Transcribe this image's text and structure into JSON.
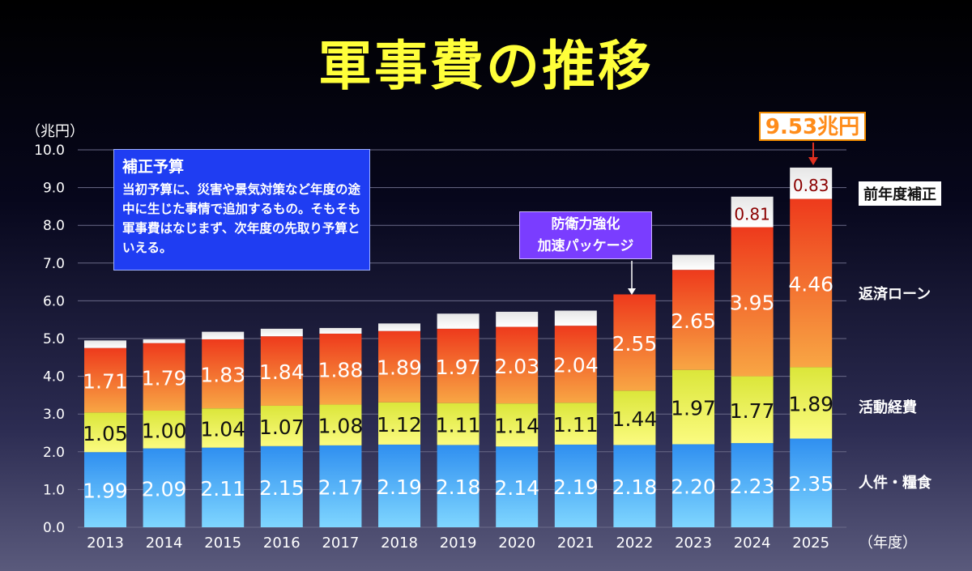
{
  "title": "軍事費の推移",
  "y_unit": "（兆円）",
  "x_unit": "（年度）",
  "info_box": {
    "heading": "補正予算",
    "body": "当初予算に、災害や景気対策など年度の途中に生じた事情で追加するもの。そもそも軍事費はなじまず、次年度の先取り予算といえる。"
  },
  "callout": {
    "line1": "防衛力強化",
    "line2": "加速パッケージ"
  },
  "total_label": "9.53兆円",
  "colors": {
    "personnel": "#3aa0f0",
    "activity": "#eef048",
    "loan": "#f0501e",
    "supplement": "#f2f2f2",
    "title": "#ffff3a",
    "arrow": "#e03020"
  },
  "legend": {
    "supplement": "前年度補正",
    "loan": "返済ローン",
    "activity": "活動経費",
    "personnel": "人件・糧食"
  },
  "chart_data": {
    "type": "bar",
    "stacked": true,
    "categories": [
      "2013",
      "2014",
      "2015",
      "2016",
      "2017",
      "2018",
      "2019",
      "2020",
      "2021",
      "2022",
      "2023",
      "2024",
      "2025"
    ],
    "ylim": [
      0,
      10
    ],
    "yticks": [
      "0.0",
      "1.0",
      "2.0",
      "3.0",
      "4.0",
      "5.0",
      "6.0",
      "7.0",
      "8.0",
      "9.0",
      "10.0"
    ],
    "series": [
      {
        "name": "人件・糧食",
        "key": "personnel",
        "values": [
          1.99,
          2.09,
          2.11,
          2.15,
          2.17,
          2.19,
          2.18,
          2.14,
          2.19,
          2.18,
          2.2,
          2.23,
          2.35
        ],
        "labels": [
          "1.99",
          "2.09",
          "2.11",
          "2.15",
          "2.17",
          "2.19",
          "2.18",
          "2.14",
          "2.19",
          "2.18",
          "2.20",
          "2.23",
          "2.35"
        ]
      },
      {
        "name": "活動経費",
        "key": "activity",
        "values": [
          1.05,
          1.0,
          1.04,
          1.07,
          1.08,
          1.12,
          1.11,
          1.14,
          1.11,
          1.44,
          1.97,
          1.77,
          1.89
        ],
        "labels": [
          "1.05",
          "1.00",
          "1.04",
          "1.07",
          "1.08",
          "1.12",
          "1.11",
          "1.14",
          "1.11",
          "1.44",
          "1.97",
          "1.77",
          "1.89"
        ]
      },
      {
        "name": "返済ローン",
        "key": "loan",
        "values": [
          1.71,
          1.79,
          1.83,
          1.84,
          1.88,
          1.89,
          1.97,
          2.03,
          2.04,
          2.55,
          2.65,
          3.95,
          4.46
        ],
        "labels": [
          "1.71",
          "1.79",
          "1.83",
          "1.84",
          "1.88",
          "1.89",
          "1.97",
          "2.03",
          "2.04",
          "2.55",
          "2.65",
          "3.95",
          "4.46"
        ]
      },
      {
        "name": "前年度補正",
        "key": "supplement",
        "values": [
          0.2,
          0.1,
          0.2,
          0.2,
          0.15,
          0.2,
          0.4,
          0.4,
          0.4,
          0,
          0.4,
          0.81,
          0.83
        ],
        "labels": [
          "",
          "",
          "",
          "",
          "",
          "",
          "",
          "",
          "",
          "",
          "",
          "0.81",
          "0.83"
        ]
      }
    ]
  }
}
